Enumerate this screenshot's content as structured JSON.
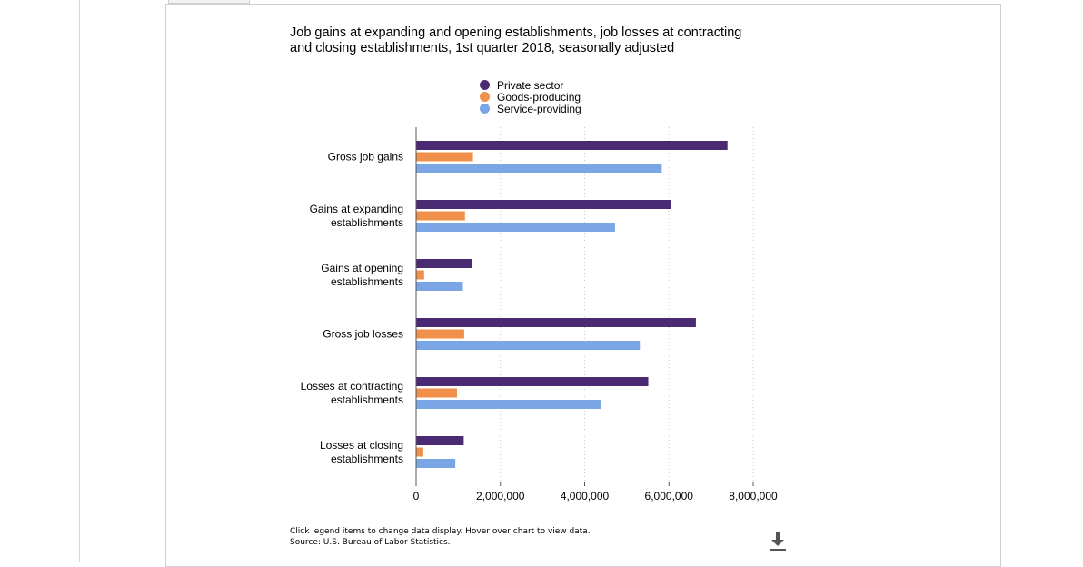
{
  "chart_data": {
    "type": "bar",
    "orientation": "horizontal",
    "title": "Job gains at expanding and opening establishments, job losses at contracting and closing establishments, 1st quarter 2018, seasonally adjusted",
    "categories": [
      [
        "Gross job gains"
      ],
      [
        "Gains at expanding",
        "establishments"
      ],
      [
        "Gains at opening",
        "establishments"
      ],
      [
        "Gross job losses"
      ],
      [
        "Losses at contracting",
        "establishments"
      ],
      [
        "Losses at closing",
        "establishments"
      ]
    ],
    "series": [
      {
        "name": "Private sector",
        "color": "#4b2a74",
        "values": [
          7390000,
          6050000,
          1330000,
          6640000,
          5510000,
          1130000
        ]
      },
      {
        "name": "Goods-producing",
        "color": "#f0904a",
        "values": [
          1350000,
          1160000,
          190000,
          1140000,
          970000,
          170000
        ]
      },
      {
        "name": "Service-providing",
        "color": "#7aa6e6",
        "values": [
          5830000,
          4720000,
          1110000,
          5310000,
          4380000,
          930000
        ]
      }
    ],
    "xlim": [
      0,
      8000000
    ],
    "xticks": [
      0,
      2000000,
      4000000,
      6000000,
      8000000
    ],
    "xtick_labels": [
      "0",
      "2,000,000",
      "4,000,000",
      "6,000,000",
      "8,000,000"
    ],
    "grid": "vertical-dotted",
    "legend_position": "top-center"
  },
  "footer": {
    "instructions": "Click legend items to change data display. Hover over chart to view data.",
    "source": "Source: U.S. Bureau of Labor Statistics."
  },
  "icons": {
    "download": "download-icon"
  }
}
